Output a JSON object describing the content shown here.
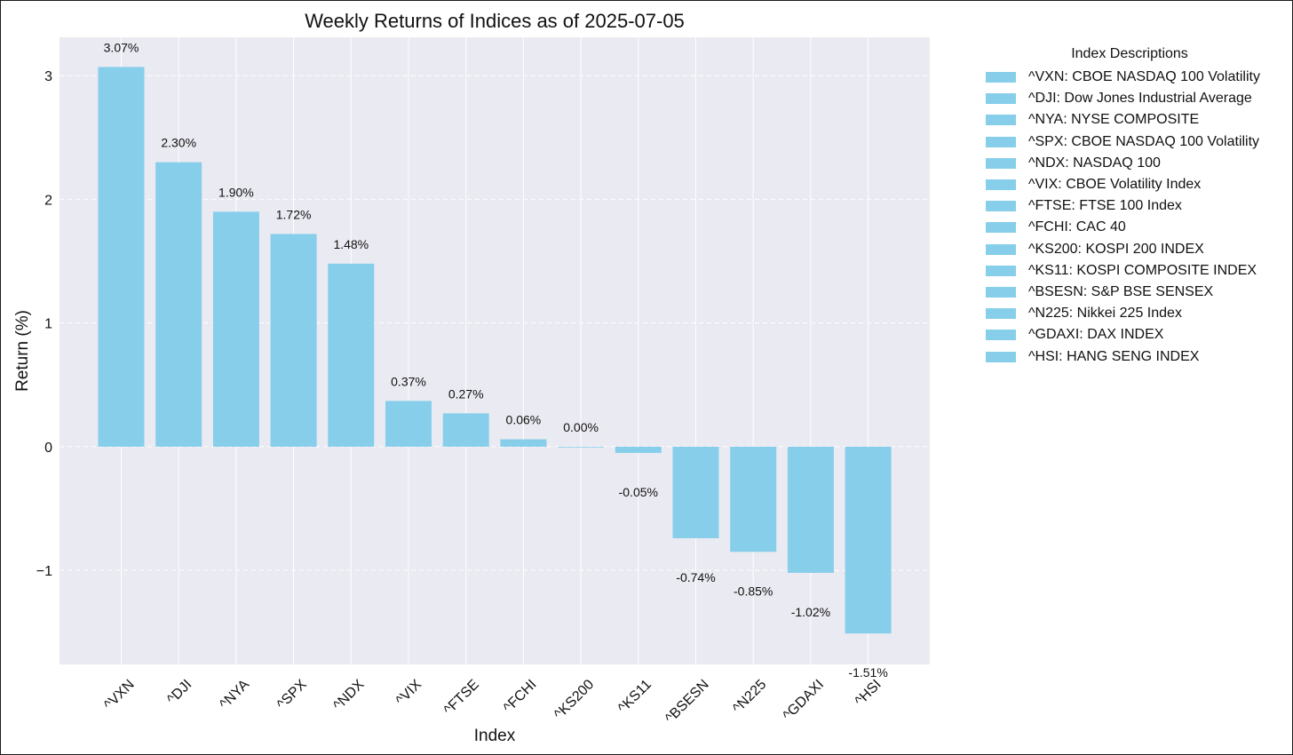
{
  "chart_data": {
    "type": "bar",
    "title": "Weekly Returns of Indices as of 2025-07-05",
    "xlabel": "Index",
    "ylabel": "Return (%)",
    "categories": [
      "^VXN",
      "^DJI",
      "^NYA",
      "^SPX",
      "^NDX",
      "^VIX",
      "^FTSE",
      "^FCHI",
      "^KS200",
      "^KS11",
      "^BSESN",
      "^N225",
      "^GDAXI",
      "^HSI"
    ],
    "values": [
      3.07,
      2.3,
      1.9,
      1.72,
      1.48,
      0.37,
      0.27,
      0.06,
      0.0,
      -0.05,
      -0.74,
      -0.85,
      -1.02,
      -1.51
    ],
    "value_labels": [
      "3.07%",
      "2.30%",
      "1.90%",
      "1.72%",
      "1.48%",
      "0.37%",
      "0.27%",
      "0.06%",
      "0.00%",
      "-0.05%",
      "-0.74%",
      "-0.85%",
      "-1.02%",
      "-1.51%"
    ],
    "yticks": [
      -1,
      0,
      1,
      2,
      3
    ],
    "ytick_labels": [
      "−1",
      "0",
      "1",
      "2",
      "3"
    ],
    "ylim": [
      -1.76,
      3.31
    ],
    "grid": true,
    "bar_color": "#87ceeb",
    "plot_background": "#eaeaf2",
    "legend": {
      "title": "Index Descriptions",
      "placement": "outside-right",
      "entries": [
        "^VXN: CBOE NASDAQ 100 Volatility",
        "^DJI: Dow Jones Industrial Average",
        "^NYA: NYSE COMPOSITE",
        "^SPX: CBOE NASDAQ 100 Volatility",
        "^NDX: NASDAQ 100",
        "^VIX: CBOE Volatility Index",
        "^FTSE: FTSE 100 Index",
        "^FCHI: CAC 40",
        "^KS200: KOSPI 200 INDEX",
        "^KS11: KOSPI COMPOSITE INDEX",
        "^BSESN: S&P BSE SENSEX",
        "^N225: Nikkei 225 Index",
        "^GDAXI: DAX INDEX",
        "^HSI: HANG SENG INDEX"
      ]
    }
  }
}
